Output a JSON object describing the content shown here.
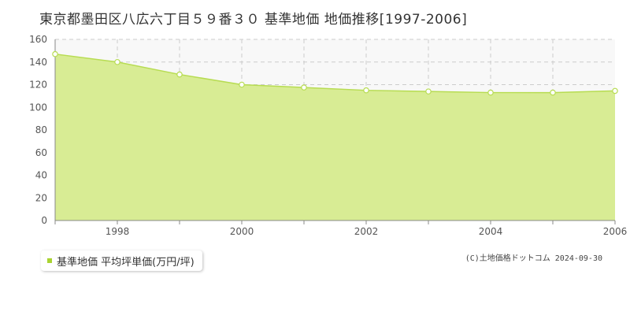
{
  "chart_data": {
    "type": "area",
    "title": "東京都墨田区八広六丁目５９番３０ 基準地価 地価推移[1997-2006]",
    "xlabel": "",
    "ylabel": "",
    "x": [
      1997,
      1998,
      1999,
      2000,
      2001,
      2002,
      2003,
      2004,
      2005,
      2006
    ],
    "x_tick_labels": [
      "1998",
      "2000",
      "2002",
      "2004",
      "2006"
    ],
    "y_tick_labels": [
      "0",
      "20",
      "40",
      "60",
      "80",
      "100",
      "120",
      "140",
      "160"
    ],
    "ylim": [
      0,
      160
    ],
    "xlim": [
      1997,
      2006
    ],
    "grid": true,
    "series": [
      {
        "name": "基準地価 平均坪単価(万円/坪)",
        "values": [
          147,
          140,
          129,
          120,
          117.5,
          115,
          114,
          113,
          113,
          114.5
        ]
      }
    ],
    "legend_position": "bottom-left",
    "colors": {
      "fill": "#d8ec94",
      "line": "#b7dc52",
      "marker_fill": "#ffffff",
      "legend": "#a9d331"
    }
  },
  "credit": "(C)土地価格ドットコム 2024-09-30"
}
